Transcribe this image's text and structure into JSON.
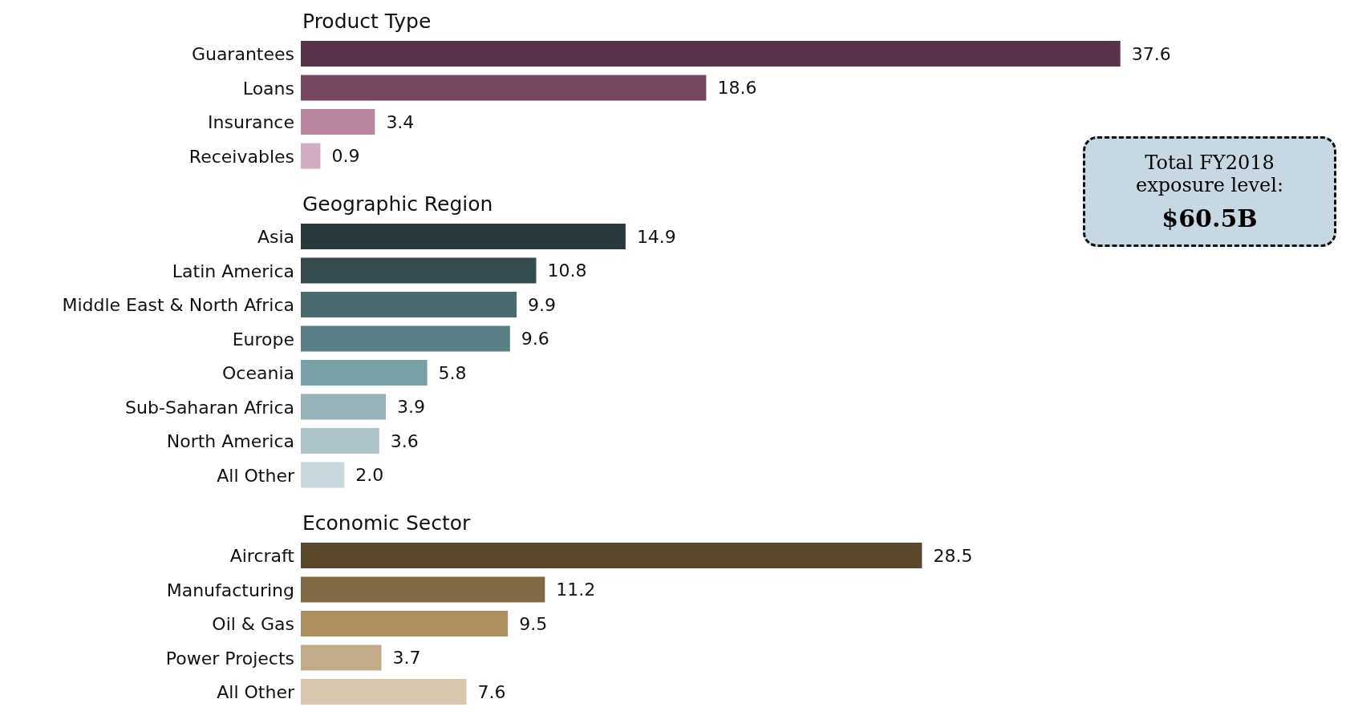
{
  "chart_data": [
    {
      "type": "bar",
      "orientation": "horizontal",
      "title": "Product Type",
      "categories": [
        "Guarantees",
        "Loans",
        "Insurance",
        "Receivables"
      ],
      "values": [
        37.6,
        18.6,
        3.4,
        0.9
      ],
      "colors": [
        "#57344a",
        "#75485f",
        "#b8869f",
        "#d2adc1"
      ],
      "value_labels": [
        "37.6",
        "18.6",
        "3.4",
        "0.9"
      ],
      "annotations": [
        "Total FY2018 exposure level:",
        "$60.5B"
      ]
    },
    {
      "type": "bar",
      "orientation": "horizontal",
      "title": "Geographic Region",
      "categories": [
        "Asia",
        "Latin America",
        "Middle East & North Africa",
        "Europe",
        "Oceania",
        "Sub-Saharan Africa",
        "North America",
        "All Other"
      ],
      "values": [
        14.9,
        10.8,
        9.9,
        9.6,
        5.8,
        3.9,
        3.6,
        2.0
      ],
      "colors": [
        "#29393c",
        "#354c4f",
        "#4a6a6e",
        "#5a8085",
        "#76a0a5",
        "#98b2b8",
        "#adc4c8",
        "#c9d8dc"
      ],
      "value_labels": [
        "14.9",
        "10.8",
        "9.9",
        "9.6",
        "5.8",
        "3.9",
        "3.6",
        "2.0"
      ]
    },
    {
      "type": "bar",
      "orientation": "horizontal",
      "title": "Economic Sector",
      "categories": [
        "Aircraft",
        "Manufacturing",
        "Oil & Gas",
        "Power Projects",
        "All Other"
      ],
      "values": [
        28.5,
        11.2,
        9.5,
        3.7,
        7.6
      ],
      "colors": [
        "#5a482c",
        "#826a44",
        "#ab8f5f",
        "#c2ab89",
        "#d8c8ae"
      ],
      "value_labels": [
        "28.5",
        "11.2",
        "9.5",
        "3.7",
        "7.6"
      ]
    }
  ]
}
